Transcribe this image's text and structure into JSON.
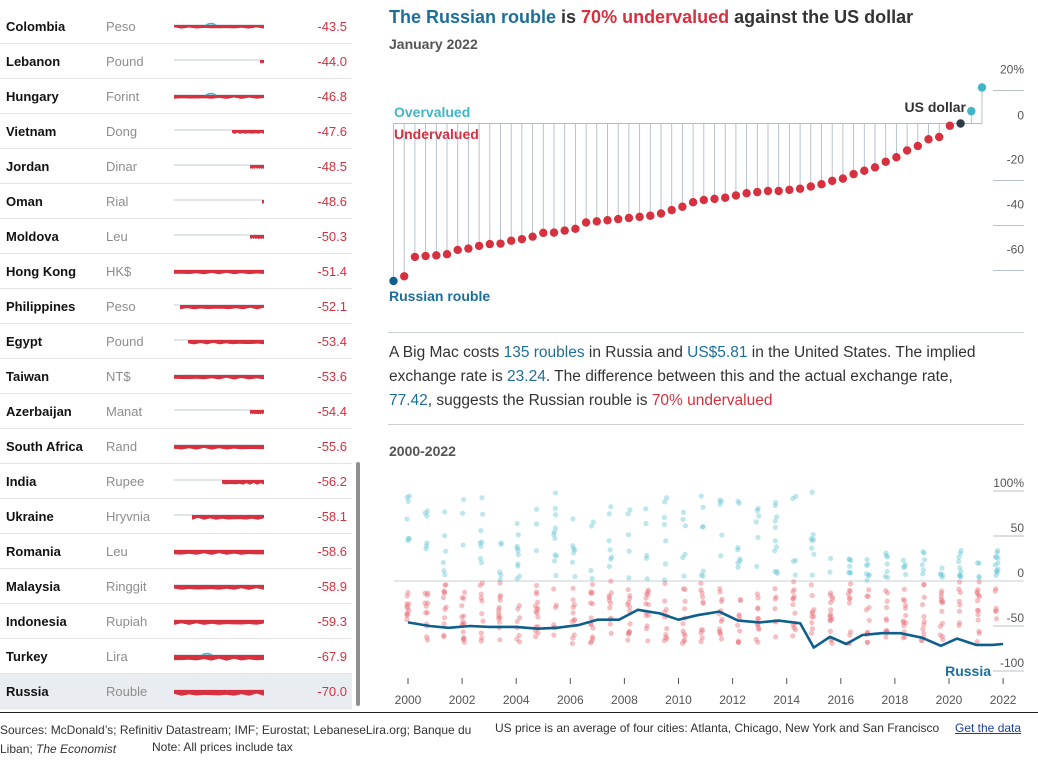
{
  "table": {
    "rows": [
      {
        "country": "Colombia",
        "currency": "Peso",
        "value": "-43.5"
      },
      {
        "country": "Lebanon",
        "currency": "Pound",
        "value": "-44.0"
      },
      {
        "country": "Hungary",
        "currency": "Forint",
        "value": "-46.8"
      },
      {
        "country": "Vietnam",
        "currency": "Dong",
        "value": "-47.6"
      },
      {
        "country": "Jordan",
        "currency": "Dinar",
        "value": "-48.5"
      },
      {
        "country": "Oman",
        "currency": "Rial",
        "value": "-48.6"
      },
      {
        "country": "Moldova",
        "currency": "Leu",
        "value": "-50.3"
      },
      {
        "country": "Hong Kong",
        "currency": "HK$",
        "value": "-51.4"
      },
      {
        "country": "Philippines",
        "currency": "Peso",
        "value": "-52.1"
      },
      {
        "country": "Egypt",
        "currency": "Pound",
        "value": "-53.4"
      },
      {
        "country": "Taiwan",
        "currency": "NT$",
        "value": "-53.6"
      },
      {
        "country": "Azerbaijan",
        "currency": "Manat",
        "value": "-54.4"
      },
      {
        "country": "South Africa",
        "currency": "Rand",
        "value": "-55.6"
      },
      {
        "country": "India",
        "currency": "Rupee",
        "value": "-56.2"
      },
      {
        "country": "Ukraine",
        "currency": "Hryvnia",
        "value": "-58.1"
      },
      {
        "country": "Romania",
        "currency": "Leu",
        "value": "-58.6"
      },
      {
        "country": "Malaysia",
        "currency": "Ringgit",
        "value": "-58.9"
      },
      {
        "country": "Indonesia",
        "currency": "Rupiah",
        "value": "-59.3"
      },
      {
        "country": "Turkey",
        "currency": "Lira",
        "value": "-67.9"
      },
      {
        "country": "Russia",
        "currency": "Rouble",
        "value": "-70.0"
      }
    ]
  },
  "header": {
    "title_part1": "The Russian rouble",
    "title_part2": " is ",
    "title_part3": "70% undervalued",
    "title_part4": " against the US dollar",
    "subtitle": "January 2022"
  },
  "chart_data": [
    {
      "type": "scatter",
      "subtitle": "January 2022",
      "yticks": [
        "20%",
        "0",
        "-20",
        "-40",
        "-60"
      ],
      "ylim": [
        -75,
        25
      ],
      "labels": {
        "overvalued": "Overvalued",
        "undervalued": "Undervalued",
        "us_dollar": "US dollar",
        "russian_rouble": "Russian rouble"
      },
      "values": [
        -70.0,
        -67.9,
        -59.3,
        -58.9,
        -58.6,
        -58.1,
        -56.2,
        -55.6,
        -54.4,
        -53.6,
        -53.4,
        -52.1,
        -51.4,
        -50.3,
        -48.6,
        -48.5,
        -47.6,
        -46.8,
        -44.0,
        -43.5,
        -43,
        -42.5,
        -42,
        -41.5,
        -41,
        -40,
        -38.5,
        -37,
        -35,
        -34,
        -33.5,
        -33,
        -32,
        -31,
        -30.5,
        -30,
        -30,
        -29.5,
        -29,
        -28,
        -27,
        -25.5,
        -24.5,
        -22.5,
        -21,
        -19.5,
        -17,
        -15,
        -12,
        -10,
        -7,
        -6,
        -1,
        0,
        5.5,
        16
      ],
      "colors": {
        "russia": "#0f5f8d",
        "undervalued": "#d7303f",
        "overvalued": "#42b4c8",
        "us": "#2f3a44",
        "stem": "#aebcca"
      }
    },
    {
      "type": "scatter",
      "title": "2000-2022",
      "x_ticks": [
        "2000",
        "2002",
        "2004",
        "2006",
        "2008",
        "2010",
        "2012",
        "2014",
        "2016",
        "2018",
        "2020",
        "2022"
      ],
      "yticks": [
        "100%",
        "50",
        "0",
        "-50",
        "-100"
      ],
      "ylim": [
        -105,
        110
      ],
      "series_label": "Russia",
      "russia_points": [
        [
          2000,
          -46
        ],
        [
          2000.8,
          -50
        ],
        [
          2001.5,
          -52
        ],
        [
          2002.3,
          -50
        ],
        [
          2003,
          -51
        ],
        [
          2004,
          -51
        ],
        [
          2004.8,
          -53
        ],
        [
          2005.5,
          -52
        ],
        [
          2006.3,
          -49
        ],
        [
          2007,
          -43
        ],
        [
          2007.8,
          -43
        ],
        [
          2008.5,
          -32
        ],
        [
          2009.3,
          -36
        ],
        [
          2010,
          -43
        ],
        [
          2010.7,
          -38
        ],
        [
          2011.5,
          -34
        ],
        [
          2012.2,
          -44
        ],
        [
          2013,
          -46
        ],
        [
          2013.7,
          -44
        ],
        [
          2014.5,
          -47
        ],
        [
          2015,
          -74
        ],
        [
          2015.6,
          -62
        ],
        [
          2016.2,
          -70
        ],
        [
          2016.8,
          -60
        ],
        [
          2017.5,
          -58
        ],
        [
          2018.2,
          -58
        ],
        [
          2019,
          -63
        ],
        [
          2019.7,
          -72
        ],
        [
          2020.3,
          -64
        ],
        [
          2021,
          -71
        ],
        [
          2021.6,
          -71
        ],
        [
          2022,
          -70
        ]
      ]
    }
  ],
  "description": {
    "p1": "A Big Mac costs ",
    "roubles": "135 roubles",
    "p2": " in Russia and ",
    "usd": "US$5.81",
    "p3": " in the United States. The implied exchange rate is ",
    "implied": "23.24",
    "p4": ". The difference between this and the actual exchange rate, ",
    "actual": "77.42",
    "p5": ", suggests the Russian rouble is ",
    "under": "70% undervalued"
  },
  "footer": {
    "sources": "Sources: McDonald’s; Refinitiv Datastream; IMF; Eurostat; LebaneseLira.org; Banque du Liban; ",
    "economist": "The Economist",
    "note": "Note: All prices include tax",
    "us_price": "US price is an average of four cities: Atlanta, Chicago, New York and San Francisco",
    "get_data": "Get the data"
  }
}
